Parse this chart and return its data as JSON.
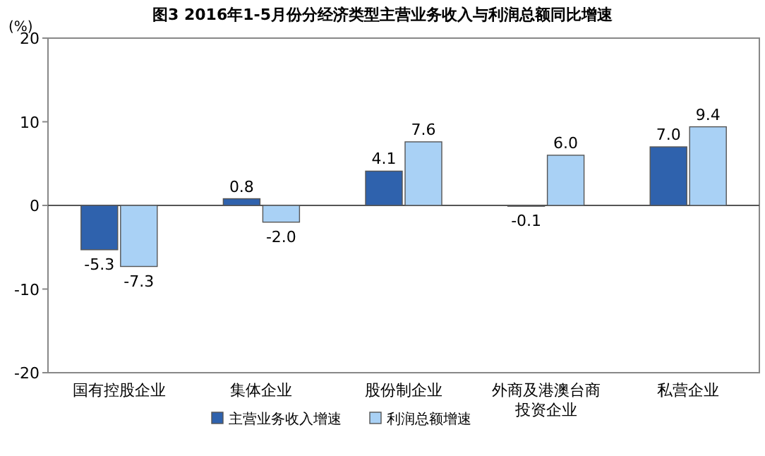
{
  "chart_data": {
    "type": "bar",
    "title": "图3  2016年1-5月份分经济类型主营业务收入与利润总额同比增速",
    "ylabel": "(%)",
    "categories": [
      "国有控股企业",
      "集体企业",
      "股份制企业",
      "外商及港澳台商投资企业",
      "私营企业"
    ],
    "series": [
      {
        "name": "主营业务收入增速",
        "color": "#2f62ad",
        "values": [
          -5.3,
          0.8,
          4.1,
          -0.1,
          7.0
        ],
        "value_labels": [
          "-5.3",
          "0.8",
          "4.1",
          "-0.1",
          "7.0"
        ]
      },
      {
        "name": "利润总额增速",
        "color": "#a9d1f5",
        "values": [
          -7.3,
          -2.0,
          7.6,
          6.0,
          9.4
        ],
        "value_labels": [
          "-7.3",
          "-2.0",
          "7.6",
          "6.0",
          "9.4"
        ]
      }
    ],
    "ylim": [
      -20,
      20
    ],
    "yticks": [
      -20,
      -10,
      0,
      10,
      20
    ],
    "legend": "bottom"
  }
}
